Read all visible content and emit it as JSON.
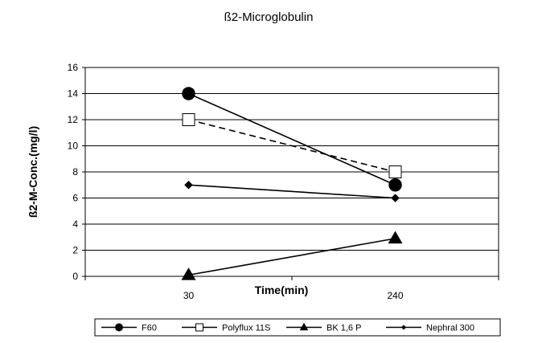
{
  "chart_data": {
    "type": "line",
    "title": "ß2-Microglobulin",
    "xlabel": "Time(min)",
    "ylabel": "ß2-M-Conc.(mg/l)",
    "categories": [
      "30",
      "240"
    ],
    "ylim": [
      0,
      16
    ],
    "yticks": [
      "0",
      "2",
      "4",
      "6",
      "8",
      "10",
      "12",
      "14",
      "16"
    ],
    "grid": "horizontal",
    "legend_position": "bottom",
    "series": [
      {
        "name": "F60",
        "values": [
          14,
          7
        ],
        "marker": "circle",
        "line": "solid",
        "color": "#000000"
      },
      {
        "name": "Polyflux 11S",
        "values": [
          12,
          8
        ],
        "marker": "square-open",
        "line": "dashed",
        "color": "#000000"
      },
      {
        "name": "BK 1,6 P",
        "values": [
          0.1,
          2.9
        ],
        "marker": "triangle",
        "line": "solid",
        "color": "#000000"
      },
      {
        "name": "Nephral 300",
        "values": [
          7,
          6
        ],
        "marker": "diamond",
        "line": "solid",
        "color": "#000000"
      }
    ]
  }
}
